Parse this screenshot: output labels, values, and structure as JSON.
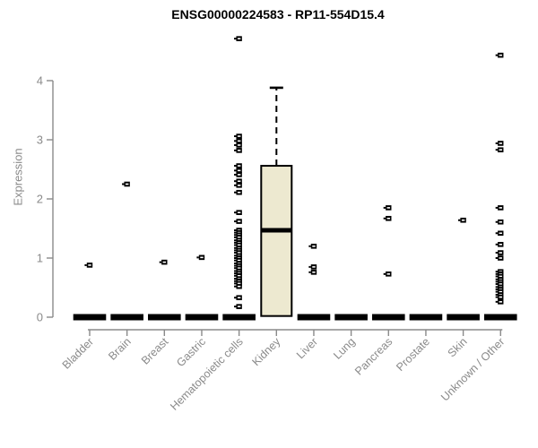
{
  "page": {
    "title": "ENSG00000224583 - RP11-554D15.4"
  },
  "chart_data": {
    "type": "box",
    "title": "ENSG00000224583 - RP11-554D15.4",
    "xlabel": "",
    "ylabel": "Expression",
    "yticks": [
      0,
      1,
      2,
      3,
      4
    ],
    "ylim": [
      0,
      4.9
    ],
    "grid": false,
    "legend_position": "none",
    "colors": {
      "box_fill": "#ede9d0",
      "box_stroke": "#000000",
      "median": "#000000",
      "outlier": "#000000",
      "axis": "#8a8a8a",
      "tick_label": "#8a8a8a",
      "title": "#000000"
    },
    "categories": [
      "Bladder",
      "Brain",
      "Breast",
      "Gastric",
      "Hematopoietic cells",
      "Kidney",
      "Liver",
      "Lung",
      "Pancreas",
      "Prostate",
      "Skin",
      "Unknown / Other"
    ],
    "boxes": [
      {
        "category": "Bladder",
        "q1": 0,
        "median": 0,
        "q3": 0,
        "whisker_low": 0,
        "whisker_high": 0,
        "outliers": [
          0.88
        ]
      },
      {
        "category": "Brain",
        "q1": 0,
        "median": 0,
        "q3": 0,
        "whisker_low": 0,
        "whisker_high": 0,
        "outliers": [
          2.25
        ]
      },
      {
        "category": "Breast",
        "q1": 0,
        "median": 0,
        "q3": 0,
        "whisker_low": 0,
        "whisker_high": 0,
        "outliers": [
          0.93
        ]
      },
      {
        "category": "Gastric",
        "q1": 0,
        "median": 0,
        "q3": 0,
        "whisker_low": 0,
        "whisker_high": 0,
        "outliers": [
          1.01
        ]
      },
      {
        "category": "Hematopoietic cells",
        "q1": 0,
        "median": 0,
        "q3": 0,
        "whisker_low": 0,
        "whisker_high": 0,
        "outliers": [
          4.71,
          3.06,
          2.98,
          2.91,
          2.82,
          2.56,
          2.48,
          2.41,
          2.3,
          2.23,
          2.11,
          1.77,
          1.62,
          1.47,
          1.43,
          1.39,
          1.35,
          1.3,
          1.26,
          1.22,
          1.17,
          1.13,
          1.09,
          1.04,
          1.0,
          0.96,
          0.91,
          0.87,
          0.83,
          0.78,
          0.74,
          0.7,
          0.65,
          0.61,
          0.57,
          0.52,
          0.33,
          0.18
        ]
      },
      {
        "category": "Kidney",
        "q1": 0.02,
        "median": 1.47,
        "q3": 2.56,
        "whisker_low": 0.02,
        "whisker_high": 3.88,
        "outliers": []
      },
      {
        "category": "Liver",
        "q1": 0,
        "median": 0,
        "q3": 0,
        "whisker_low": 0,
        "whisker_high": 0,
        "outliers": [
          1.2,
          0.85,
          0.76
        ]
      },
      {
        "category": "Lung",
        "q1": 0,
        "median": 0,
        "q3": 0,
        "whisker_low": 0,
        "whisker_high": 0,
        "outliers": []
      },
      {
        "category": "Pancreas",
        "q1": 0,
        "median": 0,
        "q3": 0,
        "whisker_low": 0,
        "whisker_high": 0,
        "outliers": [
          1.85,
          1.67,
          0.73
        ]
      },
      {
        "category": "Prostate",
        "q1": 0,
        "median": 0,
        "q3": 0,
        "whisker_low": 0,
        "whisker_high": 0,
        "outliers": []
      },
      {
        "category": "Skin",
        "q1": 0,
        "median": 0,
        "q3": 0,
        "whisker_low": 0,
        "whisker_high": 0,
        "outliers": [
          1.64
        ]
      },
      {
        "category": "Unknown / Other",
        "q1": 0,
        "median": 0,
        "q3": 0,
        "whisker_low": 0,
        "whisker_high": 0,
        "outliers": [
          4.43,
          2.94,
          2.83,
          1.85,
          1.61,
          1.42,
          1.23,
          1.09,
          1.0,
          0.77,
          0.73,
          0.69,
          0.64,
          0.6,
          0.56,
          0.51,
          0.47,
          0.43,
          0.38,
          0.34,
          0.26
        ]
      }
    ]
  }
}
